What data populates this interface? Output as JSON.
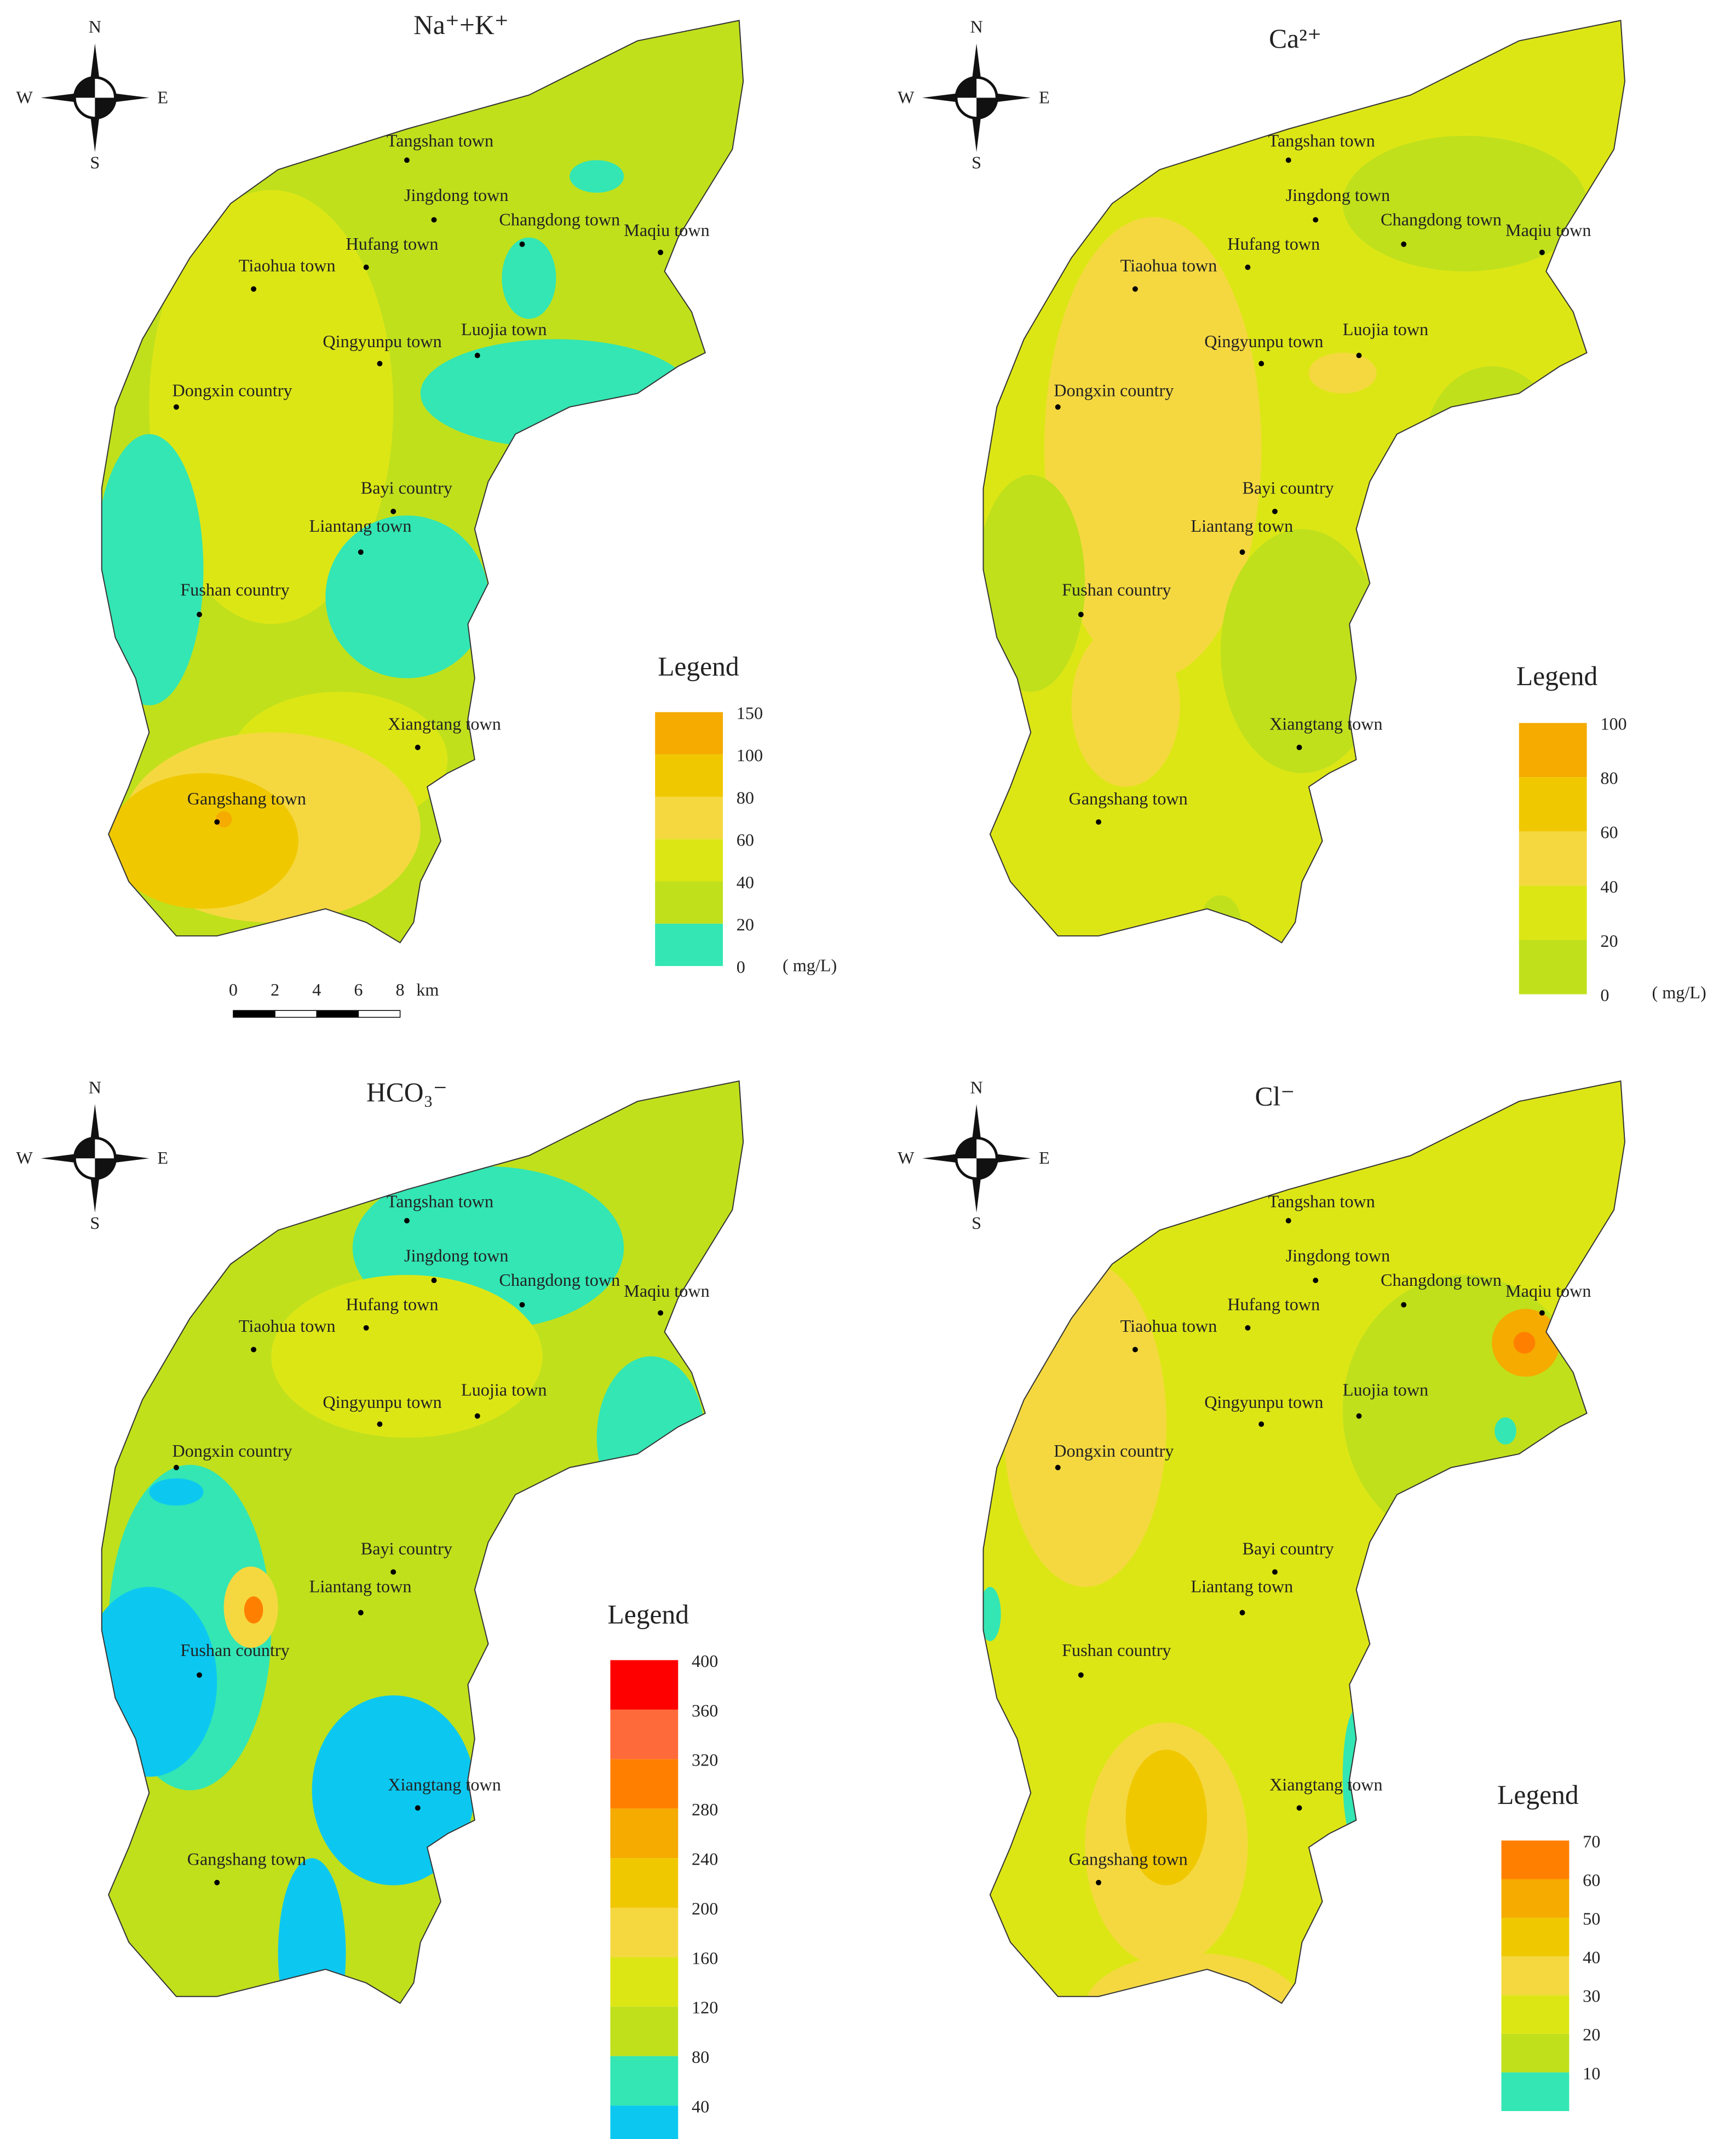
{
  "panels": [
    {
      "title": "Na⁺+K⁺",
      "compass": {
        "n": "N",
        "s": "S",
        "w": "W",
        "e": "E"
      },
      "towns": [
        "Tangshan town",
        "Jingdong town",
        "Changdong town",
        "Maqiu town",
        "Hufang town",
        "Tiaohua town",
        "Qingyunpu town",
        "Luojia town",
        "Dongxin country",
        "Bayi country",
        "Liantang town",
        "Fushan country",
        "Xiangtang town",
        "Gangshang town"
      ],
      "legend": {
        "title": "Legend",
        "ticks": [
          150,
          100,
          80,
          60,
          40,
          20,
          0
        ],
        "colors": [
          "#f5ab00",
          "#f0c800",
          "#f5d840",
          "#dde615",
          "#c0e01c",
          "#33e6b4"
        ],
        "unit": "( mg/L)"
      },
      "scale_bar": {
        "ticks": [
          0,
          2,
          4,
          6,
          8
        ],
        "unit": "km"
      }
    },
    {
      "title": "Ca²⁺",
      "compass": {
        "n": "N",
        "s": "S",
        "w": "W",
        "e": "E"
      },
      "towns": [
        "Tangshan town",
        "Jingdong town",
        "Changdong town",
        "Maqiu town",
        "Hufang town",
        "Tiaohua town",
        "Qingyunpu town",
        "Luojia town",
        "Dongxin country",
        "Bayi country",
        "Liantang town",
        "Fushan country",
        "Xiangtang town",
        "Gangshang town"
      ],
      "legend": {
        "title": "Legend",
        "ticks": [
          100,
          80,
          60,
          40,
          20,
          0
        ],
        "colors": [
          "#f5ab00",
          "#f0c800",
          "#f5d840",
          "#dde615",
          "#c0e01c"
        ],
        "unit": "( mg/L)"
      }
    },
    {
      "title": "HCO₃⁻",
      "compass": {
        "n": "N",
        "s": "S",
        "w": "W",
        "e": "E"
      },
      "towns": [
        "Tangshan town",
        "Jingdong town",
        "Changdong town",
        "Maqiu town",
        "Hufang town",
        "Tiaohua town",
        "Qingyunpu town",
        "Luojia town",
        "Dongxin country",
        "Bayi country",
        "Liantang town",
        "Fushan country",
        "Xiangtang town",
        "Gangshang town"
      ],
      "legend": {
        "title": "Legend",
        "ticks": [
          400,
          360,
          320,
          280,
          240,
          200,
          160,
          120,
          80,
          40
        ],
        "colors": [
          "#ff0000",
          "#ff6a3a",
          "#ff8000",
          "#f5ab00",
          "#f0c800",
          "#f5d840",
          "#dde615",
          "#c0e01c",
          "#33e6b4",
          "#0cc8f0"
        ]
      }
    },
    {
      "title": "Cl⁻",
      "compass": {
        "n": "N",
        "s": "S",
        "w": "W",
        "e": "E"
      },
      "towns": [
        "Tangshan town",
        "Jingdong town",
        "Changdong town",
        "Maqiu town",
        "Hufang town",
        "Tiaohua town",
        "Qingyunpu town",
        "Luojia town",
        "Dongxin country",
        "Bayi country",
        "Liantang town",
        "Fushan country",
        "Xiangtang town",
        "Gangshang town"
      ],
      "legend": {
        "title": "Legend",
        "ticks": [
          70,
          60,
          50,
          40,
          30,
          20,
          10
        ],
        "colors": [
          "#ff8000",
          "#f5ab00",
          "#f0c800",
          "#f5d840",
          "#dde615",
          "#c0e01c",
          "#33e6b4"
        ]
      }
    }
  ]
}
